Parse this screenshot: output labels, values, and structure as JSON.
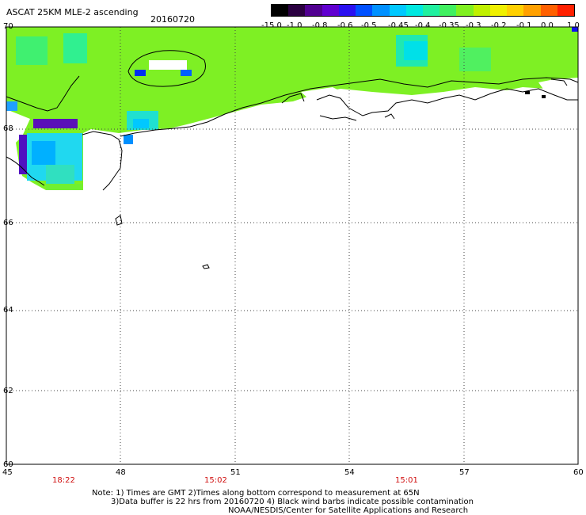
{
  "header": {
    "title": "ASCAT 25KM MLE-2 ascending",
    "date": "20160720"
  },
  "colorbar": {
    "labels": [
      "-15.0",
      "-1.0",
      "-0.8",
      "-0.6",
      "-0.5",
      "-0.45",
      "-0.4",
      "-0.35",
      "-0.3",
      "-0.2",
      "-0.1",
      "0.0",
      "1.0"
    ],
    "colors": [
      "#000000",
      "#2a0040",
      "#500090",
      "#6000d0",
      "#2a10f0",
      "#0050ff",
      "#0090ff",
      "#00c8ff",
      "#00e8e0",
      "#20f0a0",
      "#40f060",
      "#80f020",
      "#c0f000",
      "#f0f000",
      "#ffd000",
      "#ffa000",
      "#ff6000",
      "#ff2000"
    ]
  },
  "map": {
    "lat_labels": [
      "70",
      "68",
      "66",
      "64",
      "62",
      "60"
    ],
    "lon_labels": [
      "45",
      "48",
      "51",
      "54",
      "57",
      "60"
    ],
    "lat_range": [
      60,
      70
    ],
    "lon_range": [
      45,
      60
    ],
    "grid": true,
    "times": [
      "18:22",
      "15:02",
      "15:01"
    ]
  },
  "notes": [
    "Note: 1) Times are GMT 2)Times along bottom correspond to measurement at 65N",
    "3)Data buffer is 22 hrs from 20160720 4) Black wind barbs indicate possible contamination",
    "NOAA/NESDIS/Center for Satellite Applications and Research"
  ]
}
